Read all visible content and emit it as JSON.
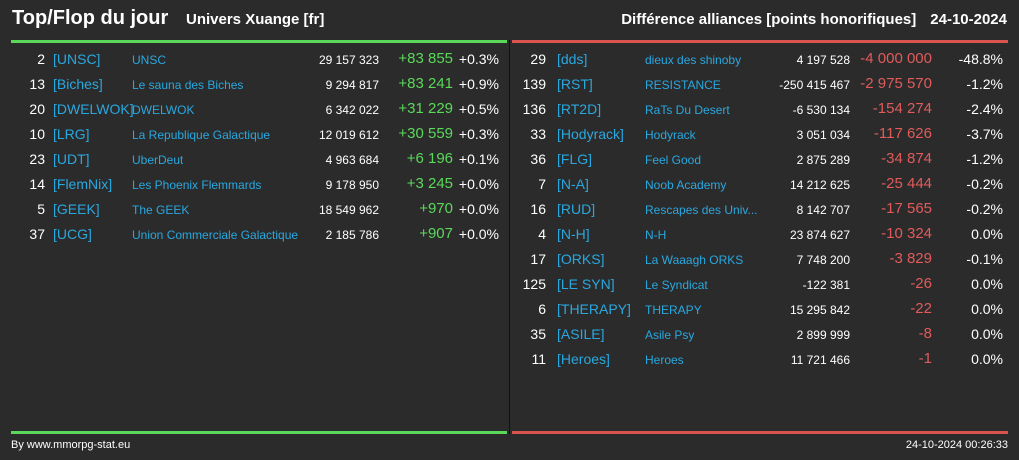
{
  "header": {
    "title": "Top/Flop du jour",
    "universe": "Univers Xuange [fr]",
    "category": "Différence alliances [points honorifiques]",
    "date": "24-10-2024"
  },
  "colors": {
    "positive": "#5ad85a",
    "negative": "#e15b5b",
    "link": "#29a8e0",
    "background": "#2b2b2b"
  },
  "top": [
    {
      "rank": "2",
      "tag": "[UNSC]",
      "name": "UNSC",
      "points": "29 157 323",
      "diff": "+83 855",
      "pct": "+0.3%"
    },
    {
      "rank": "13",
      "tag": "[Biches]",
      "name": "Le sauna des Biches",
      "points": "9 294 817",
      "diff": "+83 241",
      "pct": "+0.9%"
    },
    {
      "rank": "20",
      "tag": "[DWELWOK]",
      "name": "DWELWOK",
      "points": "6 342 022",
      "diff": "+31 229",
      "pct": "+0.5%"
    },
    {
      "rank": "10",
      "tag": "[LRG]",
      "name": "La Republique Galactique",
      "points": "12 019 612",
      "diff": "+30 559",
      "pct": "+0.3%"
    },
    {
      "rank": "23",
      "tag": "[UDT]",
      "name": "UberDeut",
      "points": "4 963 684",
      "diff": "+6 196",
      "pct": "+0.1%"
    },
    {
      "rank": "14",
      "tag": "[FlemNix]",
      "name": "Les Phoenix Flemmards",
      "points": "9 178 950",
      "diff": "+3 245",
      "pct": "+0.0%"
    },
    {
      "rank": "5",
      "tag": "[GEEK]",
      "name": "The GEEK",
      "points": "18 549 962",
      "diff": "+970",
      "pct": "+0.0%"
    },
    {
      "rank": "37",
      "tag": "[UCG]",
      "name": "Union Commerciale Galactique",
      "points": "2 185 786",
      "diff": "+907",
      "pct": "+0.0%"
    }
  ],
  "flop": [
    {
      "rank": "29",
      "tag": "[dds]",
      "name": "dieux des shinoby",
      "points": "4 197 528",
      "diff": "-4 000 000",
      "pct": "-48.8%"
    },
    {
      "rank": "139",
      "tag": "[RST]",
      "name": "RESISTANCE",
      "points": "-250 415 467",
      "diff": "-2 975 570",
      "pct": "-1.2%"
    },
    {
      "rank": "136",
      "tag": "[RT2D]",
      "name": "RaTs Du Desert",
      "points": "-6 530 134",
      "diff": "-154 274",
      "pct": "-2.4%"
    },
    {
      "rank": "33",
      "tag": "[Hodyrack]",
      "name": "Hodyrack",
      "points": "3 051 034",
      "diff": "-117 626",
      "pct": "-3.7%"
    },
    {
      "rank": "36",
      "tag": "[FLG]",
      "name": "Feel Good",
      "points": "2 875 289",
      "diff": "-34 874",
      "pct": "-1.2%"
    },
    {
      "rank": "7",
      "tag": "[N-A]",
      "name": "Noob Academy",
      "points": "14 212 625",
      "diff": "-25 444",
      "pct": "-0.2%"
    },
    {
      "rank": "16",
      "tag": "[RUD]",
      "name": "Rescapes des Univ...",
      "points": "8 142 707",
      "diff": "-17 565",
      "pct": "-0.2%"
    },
    {
      "rank": "4",
      "tag": "[N-H]",
      "name": "N-H",
      "points": "23 874 627",
      "diff": "-10 324",
      "pct": "0.0%"
    },
    {
      "rank": "17",
      "tag": "[ORKS]",
      "name": "La Waaagh ORKS",
      "points": "7 748 200",
      "diff": "-3 829",
      "pct": "-0.1%"
    },
    {
      "rank": "125",
      "tag": "[LE SYN]",
      "name": "Le Syndicat",
      "points": "-122 381",
      "diff": "-26",
      "pct": "0.0%"
    },
    {
      "rank": "6",
      "tag": "[THERAPY]",
      "name": "THERAPY",
      "points": "15 295 842",
      "diff": "-22",
      "pct": "0.0%"
    },
    {
      "rank": "35",
      "tag": "[ASILE]",
      "name": "Asile Psy",
      "points": "2 899 999",
      "diff": "-8",
      "pct": "0.0%"
    },
    {
      "rank": "11",
      "tag": "[Heroes]",
      "name": "Heroes",
      "points": "11 721 466",
      "diff": "-1",
      "pct": "0.0%"
    }
  ],
  "footer": {
    "source": "By www.mmorpg-stat.eu",
    "timestamp": "24-10-2024 00:26:33"
  }
}
